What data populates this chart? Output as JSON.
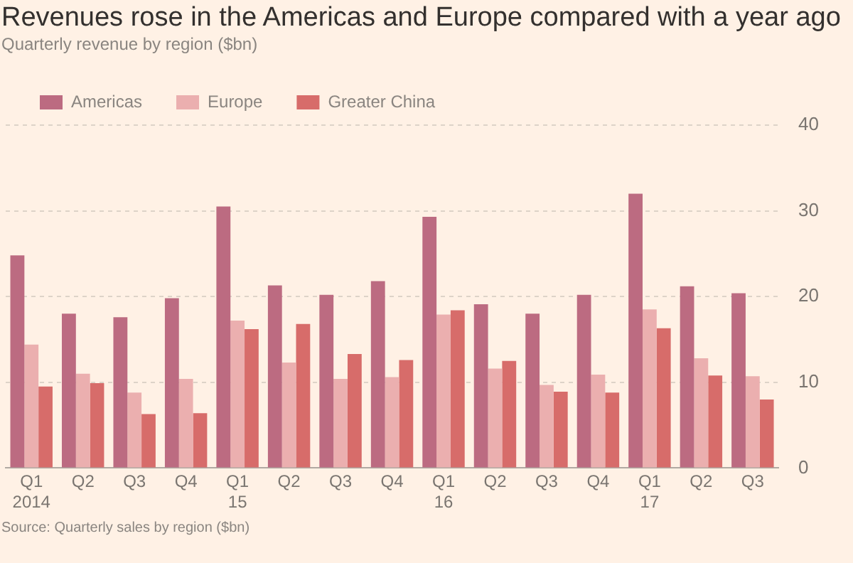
{
  "chart_data": {
    "type": "bar",
    "title": "Revenues rose in the Americas and Europe compared with a year ago",
    "subtitle": "Quarterly revenue by region ($bn)",
    "annotations": [
      "Source: Quarterly sales by region ($bn)"
    ],
    "categories": [
      "Q1\n2014",
      "Q2",
      "Q3",
      "Q4",
      "Q1\n15",
      "Q2",
      "Q3",
      "Q4",
      "Q1\n16",
      "Q2",
      "Q3",
      "Q4",
      "Q1\n17",
      "Q2",
      "Q3"
    ],
    "series": [
      {
        "name": "Americas",
        "color": "#bc6b81",
        "values": [
          24.8,
          18.0,
          17.6,
          19.8,
          30.5,
          21.3,
          20.2,
          21.8,
          29.3,
          19.1,
          18.0,
          20.2,
          32.0,
          21.2,
          20.4
        ]
      },
      {
        "name": "Europe",
        "color": "#ebafaf",
        "values": [
          14.4,
          11.0,
          8.8,
          10.4,
          17.2,
          12.3,
          10.4,
          10.6,
          17.9,
          11.6,
          9.7,
          10.9,
          18.5,
          12.8,
          10.7
        ]
      },
      {
        "name": "Greater China",
        "color": "#d76c6a",
        "values": [
          9.5,
          9.9,
          6.3,
          6.4,
          16.2,
          16.8,
          13.3,
          12.6,
          18.4,
          12.5,
          8.9,
          8.8,
          16.3,
          10.8,
          8.0
        ]
      }
    ],
    "ylim": [
      0,
      40
    ],
    "yticks": [
      0,
      10,
      20,
      30,
      40
    ],
    "grid": "y",
    "legend": "top left"
  }
}
